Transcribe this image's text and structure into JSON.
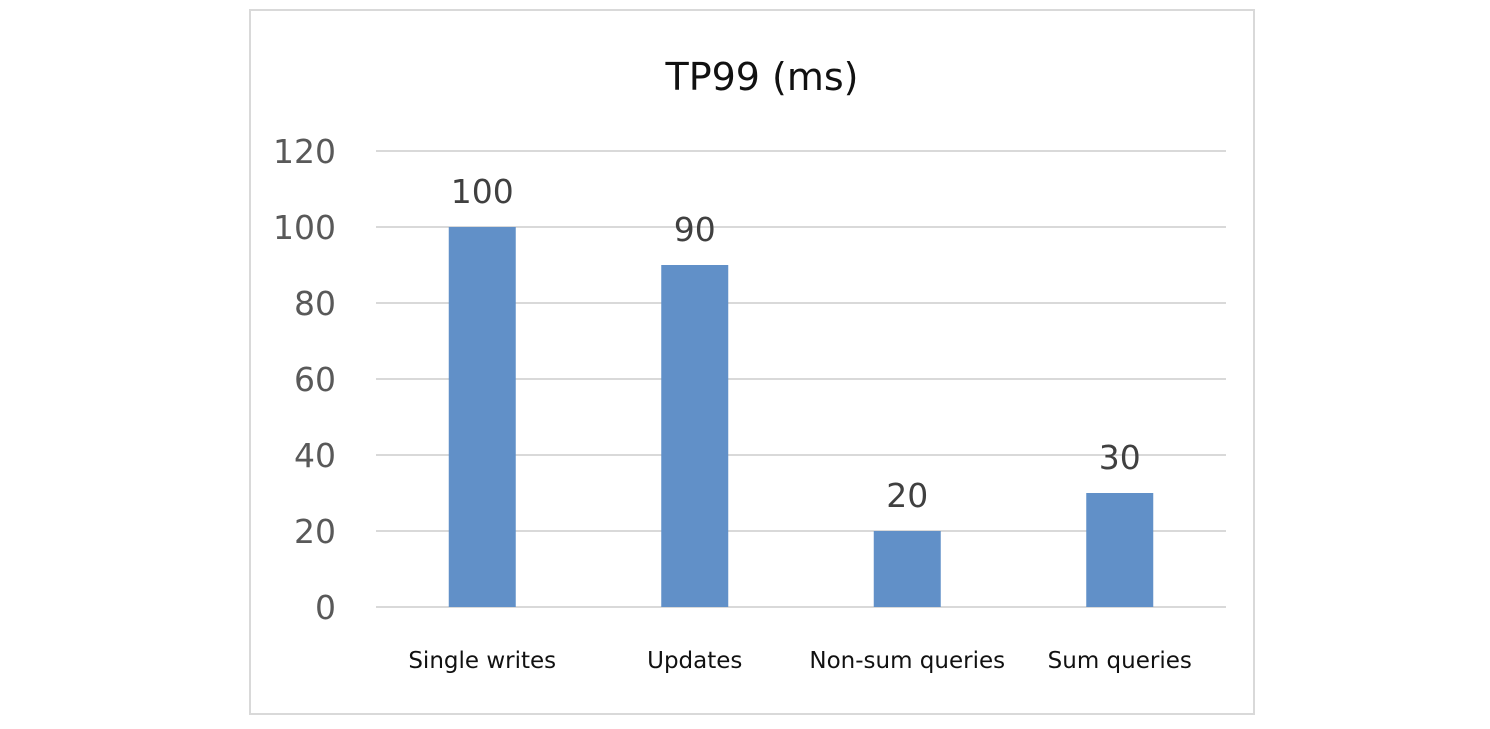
{
  "chart_data": {
    "type": "bar",
    "title": "TP99 (ms)",
    "xlabel": "",
    "ylabel": "",
    "categories": [
      "Single writes",
      "Updates",
      "Non-sum queries",
      "Sum queries"
    ],
    "values": [
      100,
      90,
      20,
      30
    ],
    "data_labels": [
      "100",
      "90",
      "20",
      "30"
    ],
    "ylim": [
      0,
      120
    ],
    "yticks": [
      "0",
      "20",
      "40",
      "60",
      "80",
      "100",
      "120"
    ],
    "grid": true,
    "legend": "none",
    "colors": {
      "bar": "#6190c8",
      "grid": "#d9d9d9",
      "axis_text": "#595959",
      "label_text": "#404040",
      "title_text": "#111111"
    }
  }
}
